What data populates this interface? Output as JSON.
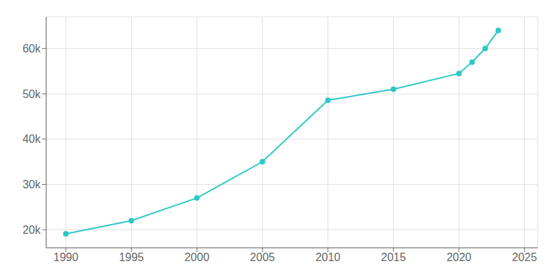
{
  "chart_data": {
    "type": "line",
    "x": [
      1990,
      1995,
      2000,
      2005,
      2010,
      2015,
      2020,
      2021,
      2022,
      2023
    ],
    "values": [
      19082,
      22000,
      27000,
      35000,
      48571,
      51000,
      54500,
      57000,
      60000,
      64000
    ],
    "color": "#2ec8c8",
    "marker": "circle",
    "xlim": [
      1988.5,
      2026
    ],
    "ylim": [
      16000,
      67000
    ],
    "xticks": [
      1990,
      1995,
      2000,
      2005,
      2010,
      2015,
      2020,
      2025
    ],
    "yticks": [
      {
        "value": 20000,
        "label": "20k"
      },
      {
        "value": 30000,
        "label": "30k"
      },
      {
        "value": 40000,
        "label": "40k"
      },
      {
        "value": 50000,
        "label": "50k"
      },
      {
        "value": 60000,
        "label": "60k"
      }
    ],
    "grid": true
  }
}
